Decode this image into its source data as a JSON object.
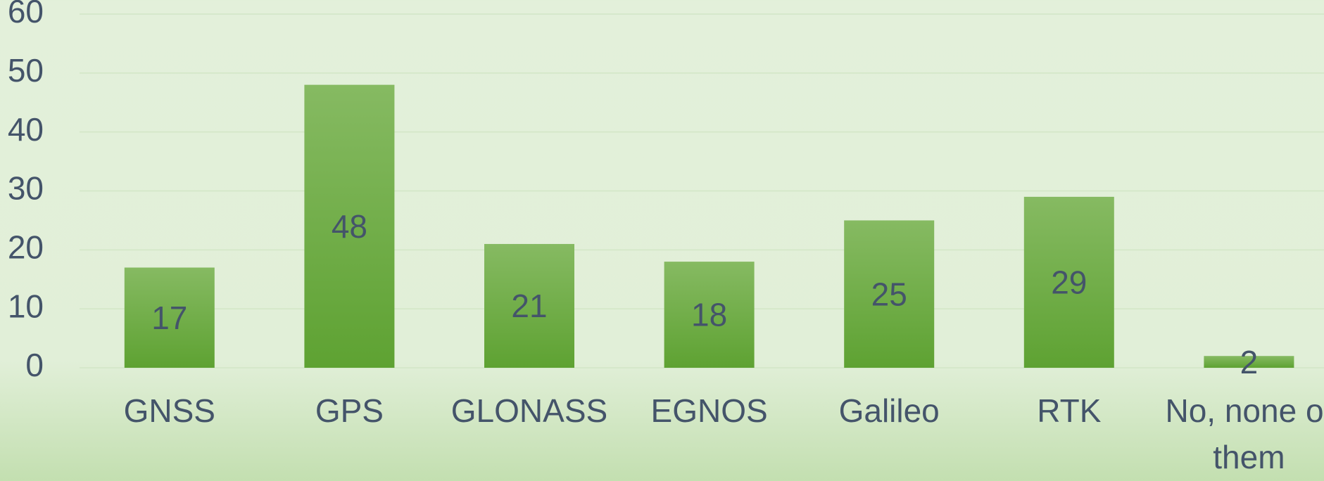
{
  "chart_data": {
    "type": "bar",
    "categories": [
      "GNSS",
      "GPS",
      "GLONASS",
      "EGNOS",
      "Galileo",
      "RTK",
      "No, none of them"
    ],
    "values": [
      17,
      48,
      21,
      18,
      25,
      29,
      2
    ],
    "color": "#6eaa45",
    "ylim": [
      0,
      60
    ],
    "yticks": [
      0,
      10,
      20,
      30,
      40,
      50,
      60
    ],
    "grid": true
  }
}
